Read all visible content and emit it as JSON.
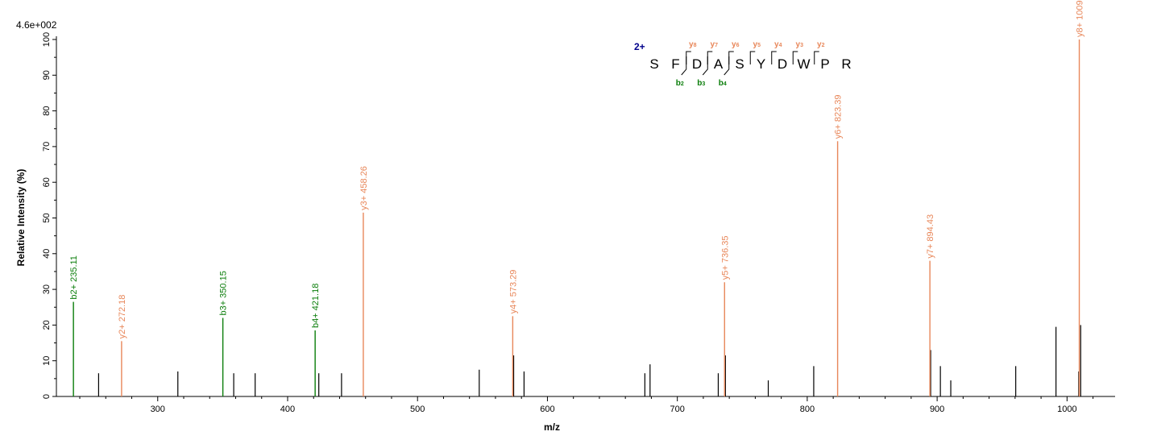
{
  "colors": {
    "b_ion": "#0a7d0a",
    "y_ion": "#e8875a",
    "unassigned": "#000000",
    "axis": "#000000",
    "charge": "#00008b"
  },
  "chart_data": {
    "type": "bar",
    "title": "",
    "xlabel": "m/z",
    "ylabel": "Relative   Intensity (%)",
    "intensity_scale_label": "4.6e+002",
    "xlim": [
      222,
      1037
    ],
    "ylim": [
      0,
      100
    ],
    "x_ticks": [
      300,
      400,
      500,
      600,
      700,
      800,
      900,
      1000
    ],
    "y_ticks": [
      0,
      10,
      20,
      30,
      40,
      50,
      60,
      70,
      80,
      90,
      100
    ],
    "grid": false,
    "annotated_peaks": [
      {
        "mz": 235.11,
        "intensity": 26.5,
        "ion": "b",
        "label": "b2+ 235.11"
      },
      {
        "mz": 272.18,
        "intensity": 15.5,
        "ion": "y",
        "label": "y2+ 272.18"
      },
      {
        "mz": 350.15,
        "intensity": 22.0,
        "ion": "b",
        "label": "b3+ 350.15"
      },
      {
        "mz": 421.18,
        "intensity": 18.5,
        "ion": "b",
        "label": "b4+ 421.18"
      },
      {
        "mz": 458.26,
        "intensity": 51.5,
        "ion": "y",
        "label": "y3+ 458.26"
      },
      {
        "mz": 573.29,
        "intensity": 22.5,
        "ion": "y",
        "label": "y4+ 573.29"
      },
      {
        "mz": 736.35,
        "intensity": 32.0,
        "ion": "y",
        "label": "y5+ 736.35"
      },
      {
        "mz": 823.39,
        "intensity": 71.5,
        "ion": "y",
        "label": "y6+ 823.39"
      },
      {
        "mz": 894.43,
        "intensity": 38.0,
        "ion": "y",
        "label": "y7+ 894.43"
      },
      {
        "mz": 1009.43,
        "intensity": 100.0,
        "ion": "y",
        "label": "y8+ 1009.43"
      }
    ],
    "unassigned_peaks": [
      {
        "mz": 254.5,
        "intensity": 6.5
      },
      {
        "mz": 315.5,
        "intensity": 7.0
      },
      {
        "mz": 358.5,
        "intensity": 6.5
      },
      {
        "mz": 375.0,
        "intensity": 6.5
      },
      {
        "mz": 424.0,
        "intensity": 6.5
      },
      {
        "mz": 441.5,
        "intensity": 6.5
      },
      {
        "mz": 547.5,
        "intensity": 7.5
      },
      {
        "mz": 574.0,
        "intensity": 11.5
      },
      {
        "mz": 582.0,
        "intensity": 7.0
      },
      {
        "mz": 675.0,
        "intensity": 6.5
      },
      {
        "mz": 679.0,
        "intensity": 9.0
      },
      {
        "mz": 731.5,
        "intensity": 6.5
      },
      {
        "mz": 737.0,
        "intensity": 11.5
      },
      {
        "mz": 770.0,
        "intensity": 4.5
      },
      {
        "mz": 805.0,
        "intensity": 8.5
      },
      {
        "mz": 895.0,
        "intensity": 13.0
      },
      {
        "mz": 902.5,
        "intensity": 8.5
      },
      {
        "mz": 910.5,
        "intensity": 4.5
      },
      {
        "mz": 960.5,
        "intensity": 8.5
      },
      {
        "mz": 991.5,
        "intensity": 19.5
      },
      {
        "mz": 1009.0,
        "intensity": 7.0
      },
      {
        "mz": 1010.5,
        "intensity": 20.0
      }
    ]
  },
  "sequence_annotation": {
    "charge": "2+",
    "residues": [
      "S",
      "F",
      "D",
      "A",
      "S",
      "Y",
      "D",
      "W",
      "P",
      "R"
    ],
    "y_ions": [
      {
        "letter": "y",
        "num": "8",
        "after": 2
      },
      {
        "letter": "y",
        "num": "7",
        "after": 3
      },
      {
        "letter": "y",
        "num": "6",
        "after": 4
      },
      {
        "letter": "y",
        "num": "5",
        "after": 5
      },
      {
        "letter": "y",
        "num": "4",
        "after": 6
      },
      {
        "letter": "y",
        "num": "3",
        "after": 7
      },
      {
        "letter": "y",
        "num": "2",
        "after": 8
      }
    ],
    "b_ions": [
      {
        "letter": "b",
        "num": "2",
        "after": 2
      },
      {
        "letter": "b",
        "num": "3",
        "after": 3
      },
      {
        "letter": "b",
        "num": "4",
        "after": 4
      }
    ]
  }
}
